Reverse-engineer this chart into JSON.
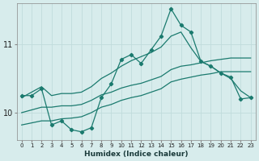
{
  "xlabel": "Humidex (Indice chaleur)",
  "ylabel": "",
  "background_color": "#d7ecec",
  "grid_color": "#c0dcdc",
  "line_color": "#1a7a6e",
  "x_values": [
    0,
    1,
    2,
    3,
    4,
    5,
    6,
    7,
    8,
    9,
    10,
    11,
    12,
    13,
    14,
    15,
    16,
    17,
    18,
    19,
    20,
    21,
    22,
    23
  ],
  "main_line": [
    10.25,
    10.25,
    10.35,
    9.82,
    9.88,
    9.75,
    9.72,
    9.78,
    10.22,
    10.42,
    10.78,
    10.85,
    10.72,
    10.92,
    11.12,
    11.52,
    11.28,
    11.18,
    10.75,
    10.68,
    10.58,
    10.52,
    10.2,
    10.22
  ],
  "upper_line": [
    10.22,
    10.3,
    10.38,
    10.25,
    10.28,
    10.28,
    10.3,
    10.38,
    10.5,
    10.58,
    10.68,
    10.76,
    10.82,
    10.88,
    10.96,
    11.12,
    11.18,
    10.95,
    10.75,
    10.68,
    10.58,
    10.5,
    10.32,
    10.22
  ],
  "lower_line1": [
    10.0,
    10.04,
    10.08,
    10.08,
    10.1,
    10.1,
    10.12,
    10.18,
    10.26,
    10.3,
    10.36,
    10.4,
    10.43,
    10.48,
    10.53,
    10.63,
    10.68,
    10.7,
    10.73,
    10.76,
    10.78,
    10.8,
    10.8,
    10.8
  ],
  "lower_line2": [
    9.82,
    9.85,
    9.88,
    9.88,
    9.91,
    9.92,
    9.94,
    10.0,
    10.08,
    10.12,
    10.18,
    10.22,
    10.25,
    10.3,
    10.35,
    10.45,
    10.49,
    10.52,
    10.55,
    10.57,
    10.6,
    10.6,
    10.6,
    10.6
  ],
  "ylim": [
    9.6,
    11.6
  ],
  "yticks": [
    10.0,
    11.0
  ],
  "xlim": [
    -0.5,
    23.5
  ],
  "xticks": [
    0,
    1,
    2,
    3,
    4,
    5,
    6,
    7,
    8,
    9,
    10,
    11,
    12,
    13,
    14,
    15,
    16,
    17,
    18,
    19,
    20,
    21,
    22,
    23
  ],
  "figsize": [
    3.2,
    2.0
  ],
  "dpi": 100
}
